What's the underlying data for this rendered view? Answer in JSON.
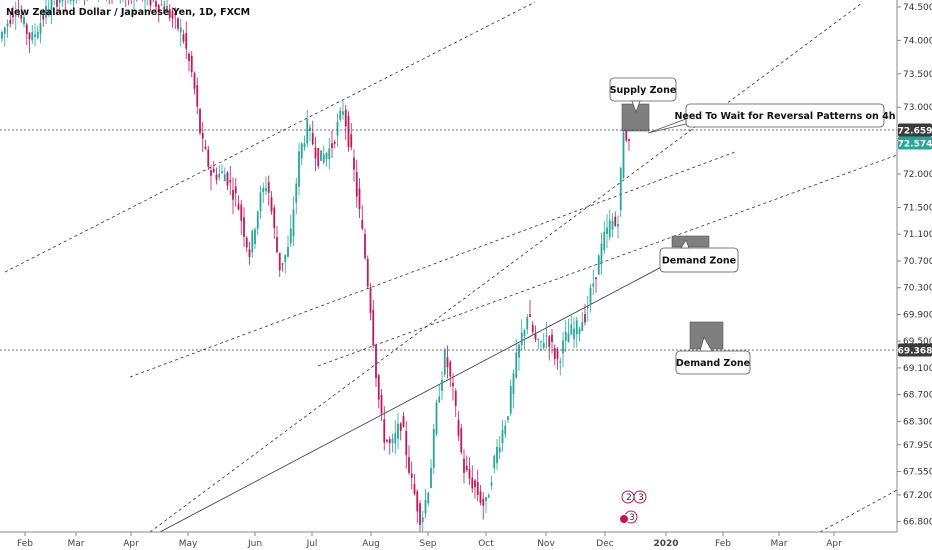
{
  "chart_data": {
    "type": "candlestick",
    "title": "New Zealand Dollar / Japanese Yen, 1D, FXCM",
    "y_axis_ticks": [
      "74.500",
      "74.000",
      "73.500",
      "73.000",
      "72.500",
      "72.000",
      "71.500",
      "71.100",
      "70.700",
      "70.300",
      "69.900",
      "69.500",
      "69.100",
      "68.700",
      "68.300",
      "67.950",
      "67.550",
      "67.200",
      "66.800"
    ],
    "x_axis_ticks": [
      "Feb",
      "Mar",
      "Apr",
      "May",
      "Jun",
      "Jul",
      "Aug",
      "Sep",
      "Oct",
      "Nov",
      "Dec",
      "2020",
      "Feb",
      "Mar",
      "Apr"
    ],
    "x_axis_bold": "2020",
    "price_tags": [
      {
        "value": "72.659",
        "color": "#3a3a3a"
      },
      {
        "value": "72.574",
        "color": "#26a69a"
      },
      {
        "value": "69.368",
        "color": "#3a3a3a"
      }
    ],
    "horizontal_lines": [
      72.659,
      69.368
    ],
    "annotations": [
      {
        "text": "Supply Zone"
      },
      {
        "text": "Need To Wait for Reversal Patterns on 4h"
      },
      {
        "text": "Demand Zone"
      },
      {
        "text": "Demand Zone"
      }
    ],
    "event_badges": [
      "2",
      "3",
      "3"
    ],
    "colors": {
      "up": "#26a69a",
      "down": "#c2185b",
      "zone": "#7f7f7f"
    }
  }
}
